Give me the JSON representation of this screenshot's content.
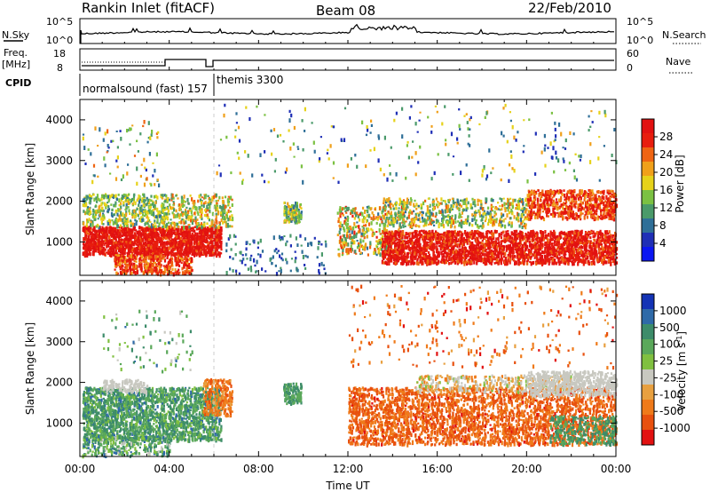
{
  "header": {
    "station": "Rankin Inlet (fitACF)",
    "beam": "Beam 08",
    "date": "22/Feb/2010"
  },
  "status_panels": {
    "nsky_label": "N.Sky",
    "nsky_ticks": [
      "10^5",
      "10^0"
    ],
    "nsearch_label": "N.Search",
    "nsearch_ticks": [
      "10^5",
      "10^0"
    ],
    "freq_label": "Freq.",
    "freq_unit": "[MHz]",
    "freq_ticks": [
      "18",
      "8"
    ],
    "nave_label": "Nave",
    "nave_ticks": [
      "60",
      "0"
    ],
    "cpid_label": "CPID",
    "cpid_segments": [
      {
        "label": "normalsound (fast) 157",
        "start_hour": 0,
        "end_hour": 6
      },
      {
        "label": "themis 3300",
        "start_hour": 6,
        "end_hour": 24
      }
    ]
  },
  "chart_data": [
    {
      "type": "heatmap",
      "name": "power",
      "ylabel": "Slant Range [km]",
      "xlim_hours": [
        0,
        24
      ],
      "ylim": [
        180,
        4500
      ],
      "yticks": [
        1000,
        2000,
        3000,
        4000
      ],
      "colorbar": {
        "label": "Power [dB]",
        "ticks": [
          "4",
          "8",
          "12",
          "16",
          "20",
          "24",
          "28"
        ],
        "colors": [
          "#0b16f2",
          "#1f2fb6",
          "#2f6f98",
          "#4a9a6a",
          "#7bc142",
          "#e6d21a",
          "#f0a01a",
          "#ef6412",
          "#e81d0e",
          "#e21111"
        ]
      }
    },
    {
      "type": "heatmap",
      "name": "velocity",
      "ylabel": "Slant Range [km]",
      "xlabel": "Time UT",
      "xlim_hours": [
        0,
        24
      ],
      "ylim": [
        180,
        4500
      ],
      "yticks": [
        1000,
        2000,
        3000,
        4000
      ],
      "xticks": [
        "00:00",
        "04:00",
        "08:00",
        "12:00",
        "16:00",
        "20:00",
        "00:00"
      ],
      "colorbar": {
        "label": "Velocity [m s^-1]",
        "ticks": [
          "1000",
          "500",
          "100",
          "25",
          "-25",
          "-100",
          "-500",
          "-1000"
        ],
        "colors": [
          "#1433b5",
          "#2f6aa8",
          "#3d8c6a",
          "#5aa85a",
          "#80c040",
          "#c8c8c0",
          "#e8a040",
          "#ef7a1a",
          "#e8500e",
          "#e21111"
        ]
      }
    }
  ]
}
